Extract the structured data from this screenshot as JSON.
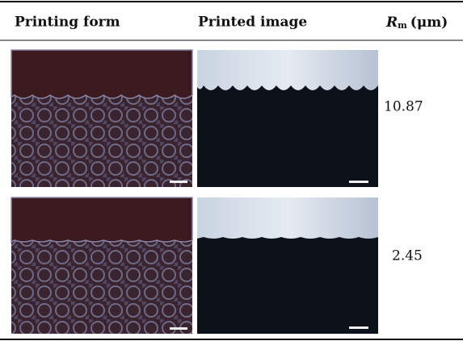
{
  "table": {
    "header": [
      "Printing form",
      "Printed image",
      {
        "symbol": "R",
        "subscript": "m",
        "unit": "(μm)"
      }
    ],
    "rows": [
      {
        "value": "10.87"
      },
      {
        "value": "2.45"
      }
    ]
  }
}
